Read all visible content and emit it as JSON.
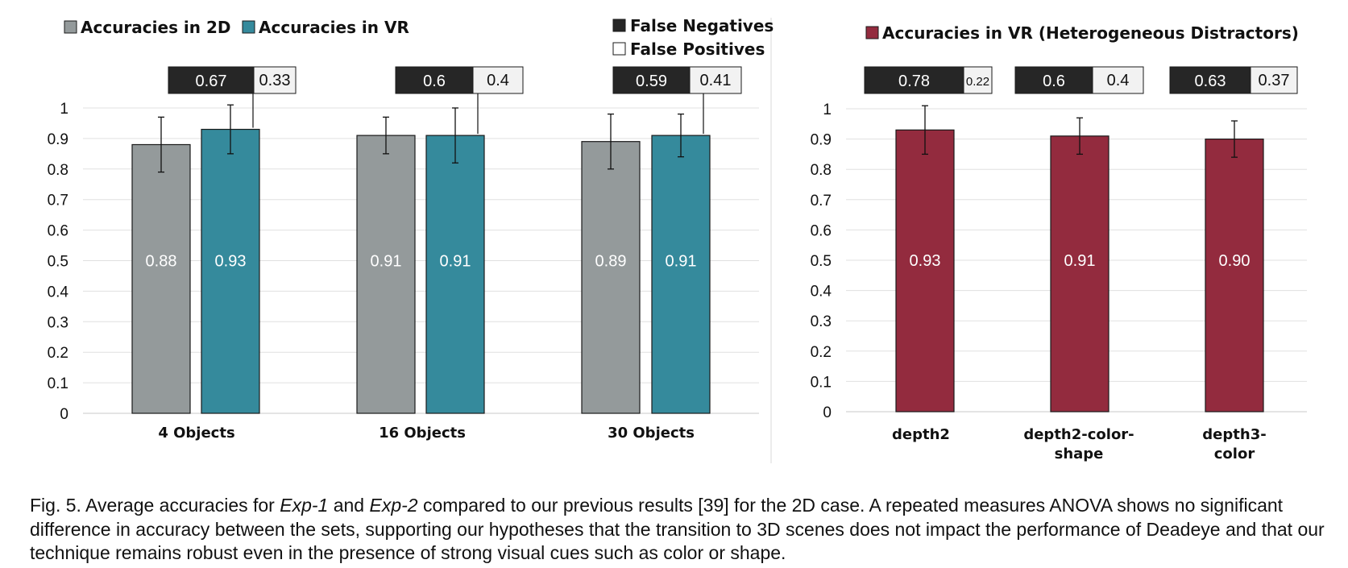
{
  "chart_data": [
    {
      "type": "bar",
      "categories": [
        "4 Objects",
        "16 Objects",
        "30 Objects"
      ],
      "series": [
        {
          "name": "Accuracies in 2D",
          "values": [
            0.88,
            0.91,
            0.89
          ],
          "error_low": [
            0.79,
            0.85,
            0.8
          ],
          "error_high": [
            0.97,
            0.97,
            0.98
          ],
          "value_labels": [
            "0.88",
            "0.91",
            "0.89"
          ]
        },
        {
          "name": "Accuracies in VR",
          "values": [
            0.93,
            0.91,
            0.91
          ],
          "error_low": [
            0.85,
            0.82,
            0.84
          ],
          "error_high": [
            1.01,
            1.0,
            0.98
          ],
          "value_labels": [
            "0.93",
            "0.91",
            "0.91"
          ]
        }
      ],
      "error_breakdown": {
        "legend": [
          "False Negatives",
          "False Positives"
        ],
        "false_negatives": [
          "0.67",
          "0.6",
          "0.59"
        ],
        "false_positives": [
          "0.33",
          "0.4",
          "0.41"
        ]
      },
      "ylim": [
        0,
        1
      ],
      "yticks": [
        "0",
        "0.1",
        "0.2",
        "0.3",
        "0.4",
        "0.5",
        "0.6",
        "0.7",
        "0.8",
        "0.9",
        "1"
      ],
      "grid": true,
      "legend_position": "top",
      "colors": {
        "Accuracies in 2D": "#949a9b",
        "Accuracies in VR": "#358a9c",
        "false_negatives": "#262626",
        "false_positives": "#f2f2f2"
      }
    },
    {
      "type": "bar",
      "categories": [
        [
          "depth2"
        ],
        [
          "depth2-color-",
          "shape"
        ],
        [
          "depth3-",
          "color"
        ]
      ],
      "series": [
        {
          "name": "Accuracies in VR (Heterogeneous Distractors)",
          "values": [
            0.93,
            0.91,
            0.9
          ],
          "error_low": [
            0.85,
            0.85,
            0.84
          ],
          "error_high": [
            1.01,
            0.97,
            0.96
          ],
          "value_labels": [
            "0.93",
            "0.91",
            "0.90"
          ]
        }
      ],
      "error_breakdown": {
        "false_negatives": [
          "0.78",
          "0.6",
          "0.63"
        ],
        "false_positives": [
          "0.22",
          "0.4",
          "0.37"
        ]
      },
      "ylim": [
        0,
        1
      ],
      "yticks": [
        "0",
        "0.1",
        "0.2",
        "0.3",
        "0.4",
        "0.5",
        "0.6",
        "0.7",
        "0.8",
        "0.9",
        "1"
      ],
      "grid": true,
      "legend_position": "top",
      "colors": {
        "Accuracies in VR (Heterogeneous Distractors)": "#932b3e",
        "false_negatives": "#262626",
        "false_positives": "#f2f2f2"
      }
    }
  ],
  "caption": {
    "p1": "Fig. 5. Average accuracies for ",
    "exp1": "Exp-1",
    "p2": " and ",
    "exp2": "Exp-2",
    "p3": " compared to our previous results [39] for the 2D case. A repeated measures ANOVA shows no significant difference in accuracy between the sets, supporting our hypotheses that the transition to 3D scenes does not impact the performance of Deadeye and that our technique remains robust even in the presence of strong visual cues such as color or shape."
  }
}
